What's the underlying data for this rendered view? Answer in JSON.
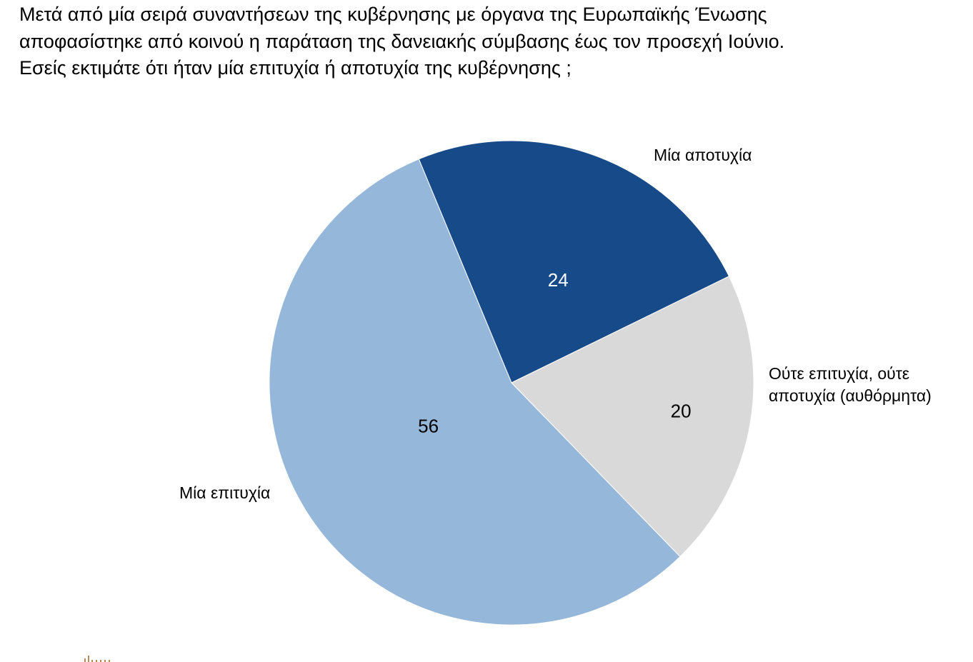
{
  "question": {
    "lines": [
      "Μετά από μία σειρά συναντήσεων της κυβέρνησης με όργανα της Ευρωπαϊκής Ένωσης",
      "αποφασίστηκε από κοινού η παράταση της δανειακής σύμβασης έως τον προσεχή Ιούνιο.",
      "Εσείς εκτιμάτε ότι ήταν μία επιτυχία ή αποτυχία της κυβέρνησης ;"
    ]
  },
  "chart_data": {
    "type": "pie",
    "start_angle_deg": -22.5,
    "direction": "clockwise",
    "slices": [
      {
        "label": "Μία αποτυχία",
        "label_lines": [
          "Μία αποτυχία"
        ],
        "value": 24,
        "display_value": "24",
        "color": "#164A89",
        "value_text_color": "#ffffff",
        "label_position": "top-right"
      },
      {
        "label": "Ούτε επιτυχία, ούτε αποτυχία (αυθόρμητα)",
        "label_lines": [
          "Ούτε επιτυχία, ούτε",
          "αποτυχία (αυθόρμητα)"
        ],
        "value": 20,
        "display_value": "20",
        "color": "#D9D9D9",
        "value_text_color": "#000000",
        "label_position": "right"
      },
      {
        "label": "Μία επιτυχία",
        "label_lines": [
          "Μία επιτυχία"
        ],
        "value": 56,
        "display_value": "56",
        "color": "#95B7D9",
        "value_text_color": "#000000",
        "label_position": "left"
      }
    ]
  },
  "colors": {
    "background": "#FFFFFF",
    "footer_mark": "#B58C55"
  }
}
